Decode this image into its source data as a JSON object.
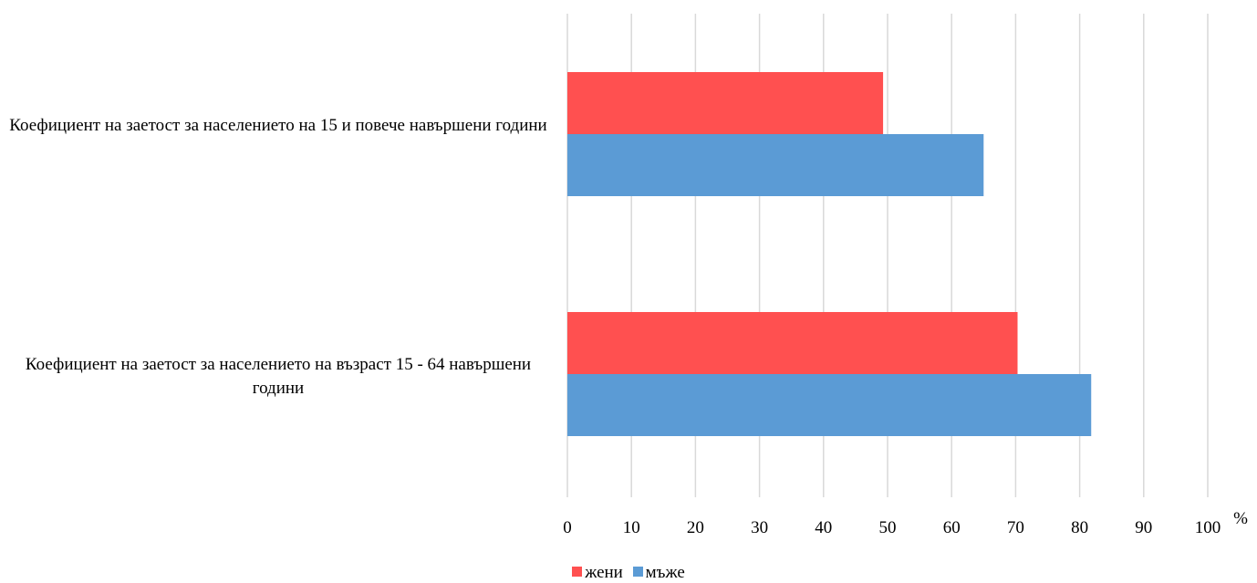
{
  "chart_data": {
    "type": "bar",
    "orientation": "horizontal",
    "categories": [
      "Коефициент на заетост за населението на 15 и повече навършени години",
      "Коефициент на заетост за населението на възраст 15 - 64 навършени години"
    ],
    "series": [
      {
        "name": "жени",
        "color": "#ff5050",
        "values": [
          49.3,
          70.3
        ]
      },
      {
        "name": "мъже",
        "color": "#5b9bd5",
        "values": [
          65.0,
          81.8
        ]
      }
    ],
    "x_ticks": [
      "0",
      "10",
      "20",
      "30",
      "40",
      "50",
      "60",
      "70",
      "80",
      "90",
      "100"
    ],
    "x_unit": "%",
    "xlim": [
      0,
      100
    ],
    "grid": true,
    "gridline_color": "#d9d9d9",
    "legend_position": "bottom"
  }
}
